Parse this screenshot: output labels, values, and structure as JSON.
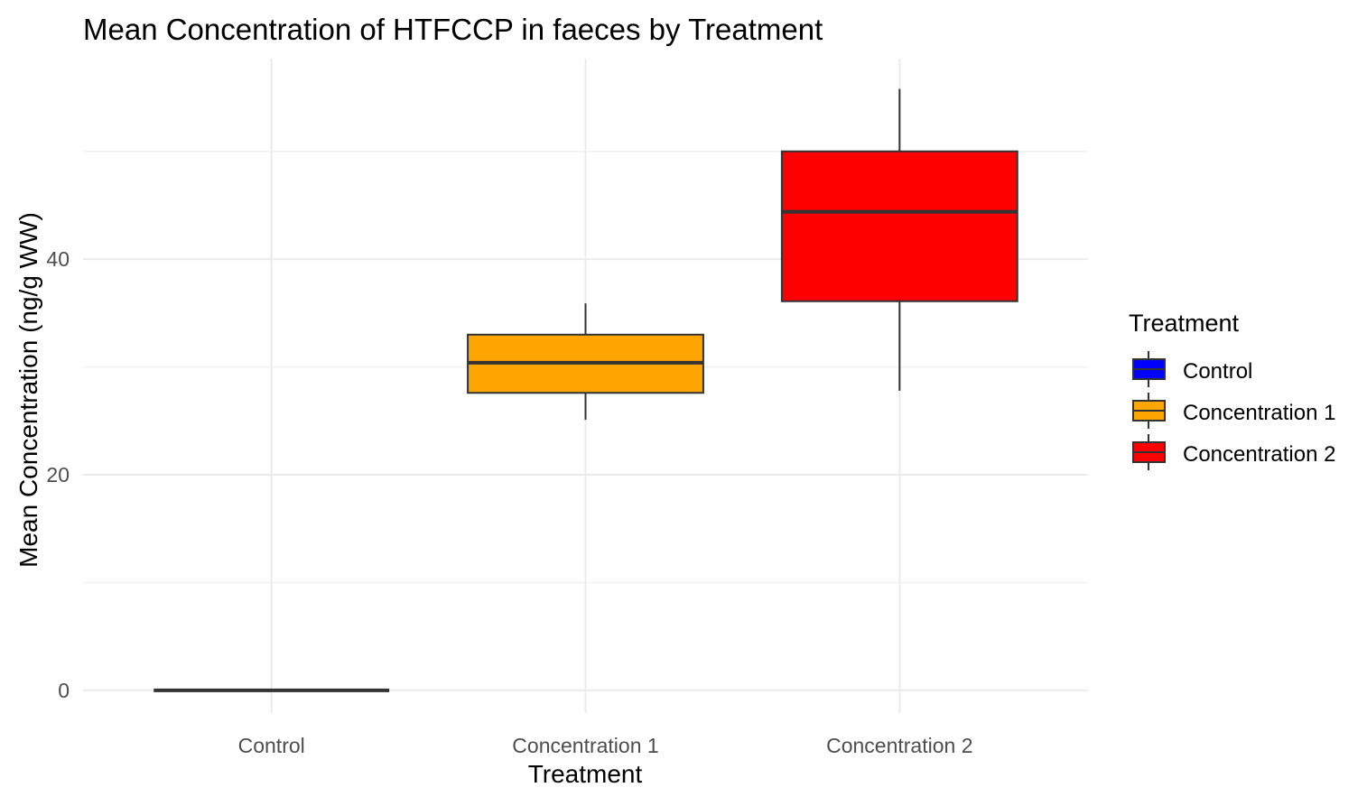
{
  "chart_data": {
    "type": "box",
    "title": "Mean Concentration of HTFCCP in faeces by Treatment",
    "xlabel": "Treatment",
    "ylabel": "Mean Concentration (ng/g WW)",
    "categories": [
      "Control",
      "Concentration 1",
      "Concentration 2"
    ],
    "boxes": [
      {
        "category": "Control",
        "lower_whisker": 0,
        "q1": 0,
        "median": 0,
        "q3": 0,
        "upper_whisker": 0,
        "fill": "#0000FF"
      },
      {
        "category": "Concentration 1",
        "lower_whisker": 25.1,
        "q1": 27.6,
        "median": 30.4,
        "q3": 33.0,
        "upper_whisker": 35.9,
        "fill": "#FFA500"
      },
      {
        "category": "Concentration 2",
        "lower_whisker": 27.8,
        "q1": 36.1,
        "median": 44.4,
        "q3": 50.0,
        "upper_whisker": 55.8,
        "fill": "#FF0000"
      }
    ],
    "yticks": [
      0,
      20,
      40
    ],
    "ytick_labels": [
      "0",
      "20",
      "40"
    ],
    "ylim": [
      -2.1,
      58.6
    ],
    "grid": true,
    "legend": {
      "title": "Treatment",
      "position": "right",
      "entries": [
        "Control",
        "Concentration 1",
        "Concentration 2"
      ]
    }
  }
}
